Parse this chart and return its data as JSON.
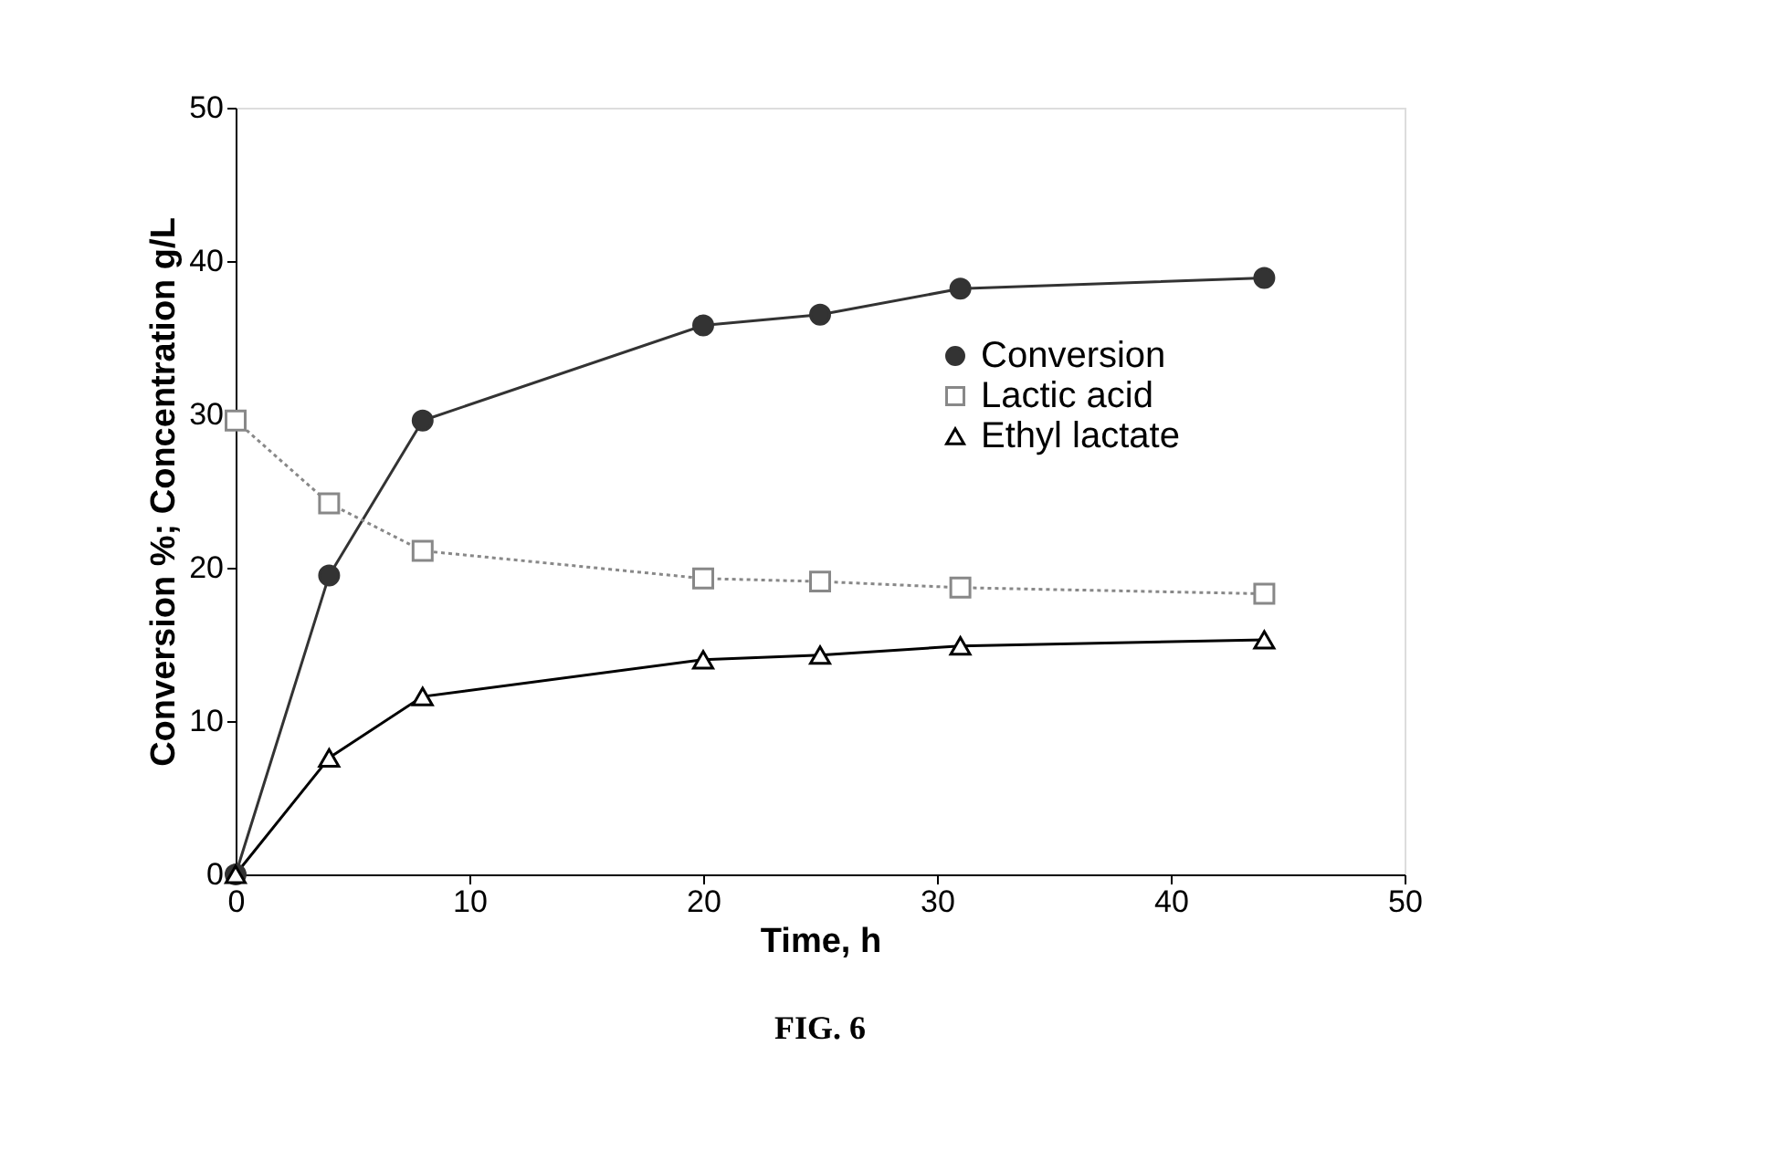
{
  "chart_data": {
    "type": "line",
    "xlabel": "Time, h",
    "ylabel": "Conversion %; Concentration g/L",
    "x": [
      0,
      4,
      8,
      20,
      25,
      31,
      44
    ],
    "series": [
      {
        "name": "Conversion",
        "color": "#333333",
        "marker": "circle",
        "line_style": "solid",
        "values": [
          0,
          19.5,
          29.6,
          35.8,
          36.5,
          38.2,
          38.9
        ]
      },
      {
        "name": "Lactic acid",
        "color": "#888888",
        "marker": "square",
        "line_style": "dotted",
        "values": [
          29.6,
          24.2,
          21.1,
          19.3,
          19.1,
          18.7,
          18.3
        ]
      },
      {
        "name": "Ethyl lactate",
        "color": "#000000",
        "marker": "triangle",
        "line_style": "solid",
        "values": [
          0,
          7.6,
          11.6,
          14.0,
          14.3,
          14.9,
          15.3
        ]
      }
    ],
    "xlim": [
      0,
      50
    ],
    "xticks": [
      0,
      10,
      20,
      30,
      40,
      50
    ],
    "ylim": [
      0,
      50
    ],
    "yticks": [
      0,
      10,
      20,
      30,
      40,
      50
    ],
    "grid": false,
    "legend": "right",
    "annotations": [
      "FIG. 6"
    ]
  }
}
